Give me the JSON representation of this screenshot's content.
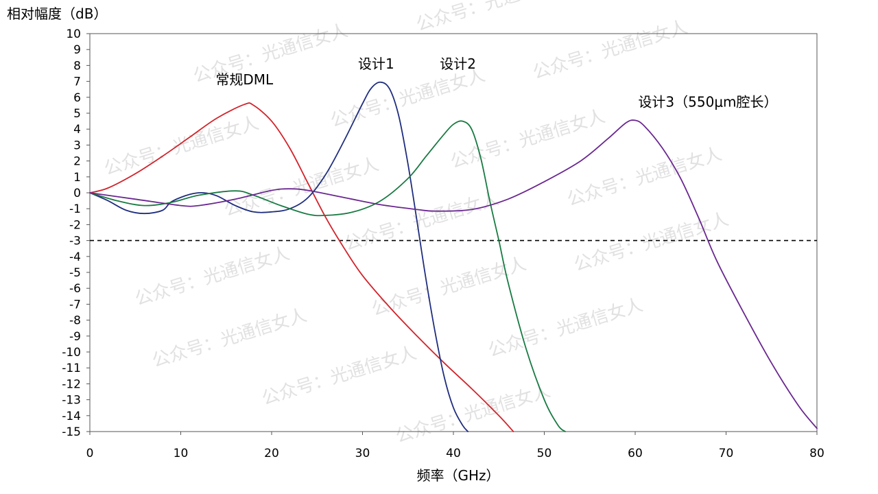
{
  "watermark": "公众号：光通信女人",
  "chart_data": {
    "type": "line",
    "title": "",
    "xlabel": "频率（GHz）",
    "ylabel": "相对幅度（dB）",
    "xlim": [
      0,
      80
    ],
    "ylim": [
      -15,
      10
    ],
    "xticks": [
      0,
      10,
      20,
      30,
      40,
      50,
      60,
      70,
      80
    ],
    "yticks": [
      10,
      9,
      8,
      7,
      6,
      5,
      4,
      3,
      2,
      1,
      0,
      -1,
      -2,
      -3,
      -4,
      -5,
      -6,
      -7,
      -8,
      -9,
      -10,
      -11,
      -12,
      -13,
      -14,
      -15
    ],
    "grid": false,
    "legend": "none",
    "reference_line": {
      "y": -3,
      "style": "dashed",
      "color": "#000000"
    },
    "series": [
      {
        "name": "常规DML",
        "color": "#d2232a",
        "label_at": [
          17,
          6.8
        ],
        "points": [
          [
            0,
            0
          ],
          [
            2,
            0.3
          ],
          [
            5,
            1.2
          ],
          [
            8,
            2.3
          ],
          [
            11,
            3.5
          ],
          [
            14,
            4.7
          ],
          [
            17,
            5.55
          ],
          [
            18,
            5.5
          ],
          [
            20,
            4.5
          ],
          [
            22,
            2.8
          ],
          [
            24,
            0.6
          ],
          [
            26,
            -1.6
          ],
          [
            28,
            -3.5
          ],
          [
            30,
            -5.2
          ],
          [
            33,
            -7.2
          ],
          [
            36,
            -9.0
          ],
          [
            39,
            -10.7
          ],
          [
            42,
            -12.3
          ],
          [
            45,
            -14.0
          ],
          [
            46.6,
            -15
          ]
        ]
      },
      {
        "name": "设计1",
        "color": "#1f2d7e",
        "label_at": [
          31.5,
          7.8
        ],
        "points": [
          [
            0,
            0
          ],
          [
            2,
            -0.5
          ],
          [
            4,
            -1.1
          ],
          [
            6,
            -1.3
          ],
          [
            8,
            -1.1
          ],
          [
            9,
            -0.55
          ],
          [
            11,
            -0.1
          ],
          [
            12.5,
            0
          ],
          [
            14,
            -0.2
          ],
          [
            16,
            -0.8
          ],
          [
            18,
            -1.2
          ],
          [
            20,
            -1.2
          ],
          [
            22,
            -1.0
          ],
          [
            24,
            -0.3
          ],
          [
            26,
            1.2
          ],
          [
            28,
            3.3
          ],
          [
            30,
            5.6
          ],
          [
            31,
            6.6
          ],
          [
            32,
            6.95
          ],
          [
            33,
            6.5
          ],
          [
            34,
            4.8
          ],
          [
            35,
            1.8
          ],
          [
            36,
            -1.8
          ],
          [
            37,
            -5.5
          ],
          [
            38,
            -8.8
          ],
          [
            39,
            -11.6
          ],
          [
            40,
            -13.5
          ],
          [
            41,
            -14.6
          ],
          [
            41.6,
            -15
          ]
        ]
      },
      {
        "name": "设计2",
        "color": "#187a42",
        "label_at": [
          40.5,
          7.8
        ],
        "points": [
          [
            0,
            0
          ],
          [
            3,
            -0.5
          ],
          [
            6,
            -0.8
          ],
          [
            9,
            -0.6
          ],
          [
            12,
            -0.15
          ],
          [
            16,
            0.12
          ],
          [
            18,
            -0.15
          ],
          [
            21,
            -0.8
          ],
          [
            24,
            -1.35
          ],
          [
            26,
            -1.42
          ],
          [
            29,
            -1.2
          ],
          [
            32,
            -0.5
          ],
          [
            35,
            0.9
          ],
          [
            37,
            2.3
          ],
          [
            39,
            3.7
          ],
          [
            40,
            4.3
          ],
          [
            41,
            4.5
          ],
          [
            42,
            4.0
          ],
          [
            43,
            2.2
          ],
          [
            44,
            -0.5
          ],
          [
            45,
            -3.0
          ],
          [
            46,
            -5.6
          ],
          [
            48,
            -9.8
          ],
          [
            50,
            -13.0
          ],
          [
            51.5,
            -14.6
          ],
          [
            52.3,
            -15
          ]
        ]
      },
      {
        "name": "设计3（550μm腔长）",
        "color": "#6a2790",
        "label_at": [
          68,
          5.4
        ],
        "points": [
          [
            0,
            0
          ],
          [
            5,
            -0.4
          ],
          [
            10,
            -0.8
          ],
          [
            12,
            -0.8
          ],
          [
            16,
            -0.4
          ],
          [
            20,
            0.15
          ],
          [
            22,
            0.25
          ],
          [
            24,
            0.15
          ],
          [
            28,
            -0.3
          ],
          [
            32,
            -0.75
          ],
          [
            36,
            -1.05
          ],
          [
            38,
            -1.15
          ],
          [
            42,
            -1.05
          ],
          [
            46,
            -0.4
          ],
          [
            50,
            0.7
          ],
          [
            54,
            2.0
          ],
          [
            57,
            3.4
          ],
          [
            59,
            4.4
          ],
          [
            60,
            4.55
          ],
          [
            61,
            4.2
          ],
          [
            63,
            2.8
          ],
          [
            65,
            0.9
          ],
          [
            67,
            -1.6
          ],
          [
            69,
            -4.3
          ],
          [
            72,
            -7.6
          ],
          [
            75,
            -10.7
          ],
          [
            78,
            -13.4
          ],
          [
            80,
            -14.8
          ]
        ]
      }
    ]
  }
}
